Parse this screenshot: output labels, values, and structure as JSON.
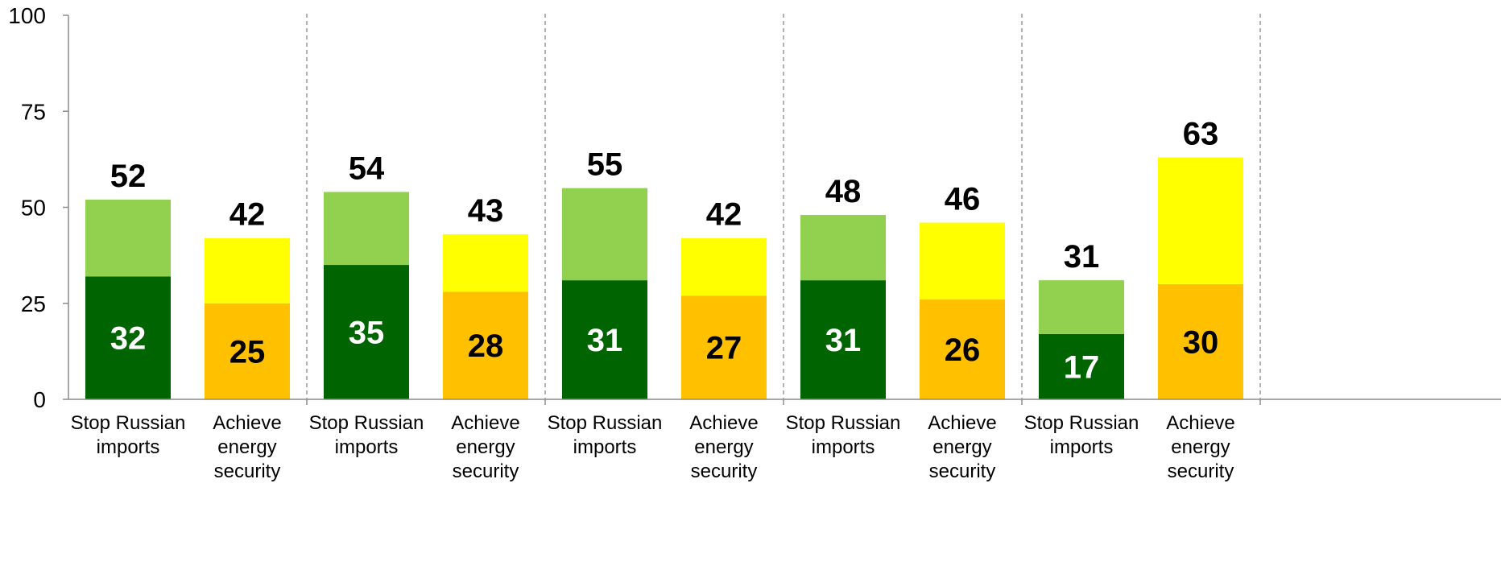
{
  "chart_data": {
    "type": "bar",
    "stacked": true,
    "ylim": [
      0,
      100
    ],
    "yticks": [
      0,
      25,
      50,
      75,
      100
    ],
    "grid": false,
    "group_separators": "dashed vertical lines between groups",
    "colors": {
      "stop_bottom": "#006400",
      "stop_top": "#92D050",
      "energy_bottom": "#FFC000",
      "energy_top": "#FFFF00",
      "stop_inner_label": "#FFFFFF",
      "energy_inner_label": "#000000"
    },
    "categories": [
      {
        "group": 1,
        "label": "Stop Russian imports",
        "lines": [
          "Stop Russian",
          "imports"
        ],
        "kind": "stop",
        "lower": 32,
        "total": 52
      },
      {
        "group": 1,
        "label": "Achieve energy security",
        "lines": [
          "Achieve",
          "energy",
          "security"
        ],
        "kind": "energy",
        "lower": 25,
        "total": 42
      },
      {
        "group": 2,
        "label": "Stop Russian imports",
        "lines": [
          "Stop Russian",
          "imports"
        ],
        "kind": "stop",
        "lower": 35,
        "total": 54
      },
      {
        "group": 2,
        "label": "Achieve energy security",
        "lines": [
          "Achieve",
          "energy",
          "security"
        ],
        "kind": "energy",
        "lower": 28,
        "total": 43
      },
      {
        "group": 3,
        "label": "Stop Russian imports",
        "lines": [
          "Stop Russian",
          "imports"
        ],
        "kind": "stop",
        "lower": 31,
        "total": 55
      },
      {
        "group": 3,
        "label": "Achieve energy security",
        "lines": [
          "Achieve",
          "energy",
          "security"
        ],
        "kind": "energy",
        "lower": 27,
        "total": 42
      },
      {
        "group": 4,
        "label": "Stop Russian imports",
        "lines": [
          "Stop Russian",
          "imports"
        ],
        "kind": "stop",
        "lower": 31,
        "total": 48
      },
      {
        "group": 4,
        "label": "Achieve energy security",
        "lines": [
          "Achieve",
          "energy",
          "security"
        ],
        "kind": "energy",
        "lower": 26,
        "total": 46
      },
      {
        "group": 5,
        "label": "Stop Russian imports",
        "lines": [
          "Stop Russian",
          "imports"
        ],
        "kind": "stop",
        "lower": 17,
        "total": 31
      },
      {
        "group": 5,
        "label": "Achieve energy security",
        "lines": [
          "Achieve",
          "energy",
          "security"
        ],
        "kind": "energy",
        "lower": 30,
        "total": 63
      }
    ]
  }
}
